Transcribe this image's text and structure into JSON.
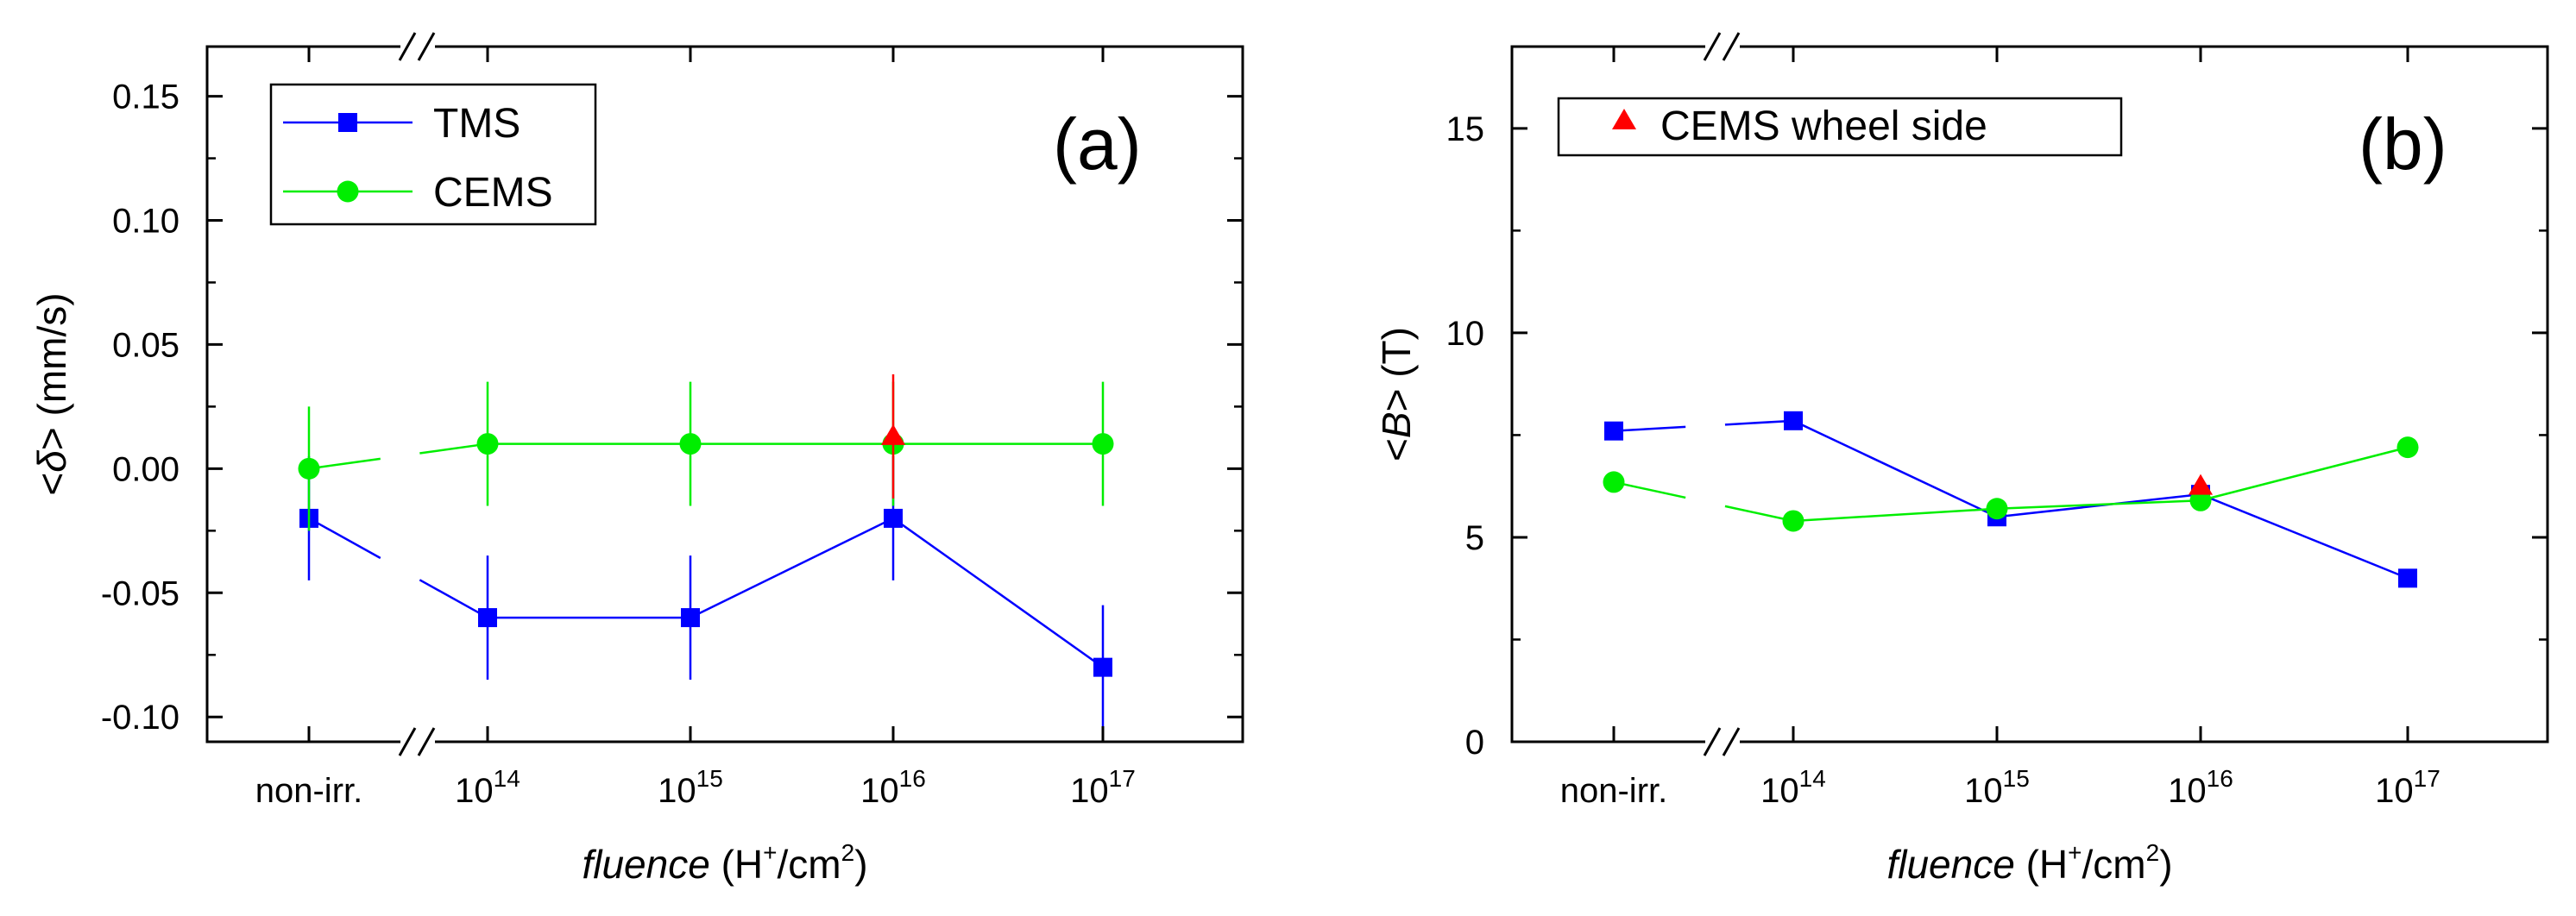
{
  "chart_data": [
    {
      "panel": "(a)",
      "type": "line",
      "title": "",
      "categories": [
        "non-irr.",
        "10^14",
        "10^15",
        "10^16",
        "10^17"
      ],
      "x_tick_labels": [
        {
          "base": "non-irr.",
          "sup": ""
        },
        {
          "base": "10",
          "sup": "14"
        },
        {
          "base": "10",
          "sup": "15"
        },
        {
          "base": "10",
          "sup": "16"
        },
        {
          "base": "10",
          "sup": "17"
        }
      ],
      "xlabel": {
        "italic": "fluence",
        "rest_before_sup": " (H",
        "sup": "+",
        "rest_middle": "/cm",
        "sup2": "2",
        "rest_after": ")"
      },
      "ylabel": {
        "lt": "<",
        "sym": "δ",
        "gt": ">",
        "units": " (mm/s)"
      },
      "ylim": [
        -0.11,
        0.17
      ],
      "yticks": [
        -0.1,
        -0.05,
        0.0,
        0.05,
        0.1,
        0.15
      ],
      "ytick_labels": [
        "-0.10",
        "-0.05",
        "0.00",
        "0.05",
        "0.10",
        "0.15"
      ],
      "legend_position": "top-left",
      "series": [
        {
          "name": "TMS",
          "marker": "square",
          "color": "#0000ff",
          "values": [
            -0.02,
            -0.06,
            -0.06,
            -0.02,
            -0.08
          ],
          "errors": [
            0.025,
            0.025,
            0.025,
            0.025,
            0.025
          ],
          "show_in_legend": true
        },
        {
          "name": "CEMS",
          "marker": "circle",
          "color": "#00ee00",
          "values": [
            0.0,
            0.01,
            0.01,
            0.01,
            0.01
          ],
          "errors": [
            0.025,
            0.025,
            0.025,
            0.025,
            0.025
          ],
          "show_in_legend": true
        },
        {
          "name": "CEMS wheel side",
          "marker": "triangle",
          "color": "#ff0000",
          "values": [
            null,
            null,
            null,
            0.013,
            null
          ],
          "errors": [
            null,
            null,
            null,
            0.025,
            null
          ],
          "show_in_legend": false
        }
      ]
    },
    {
      "panel": "(b)",
      "type": "line",
      "title": "",
      "categories": [
        "non-irr.",
        "10^14",
        "10^15",
        "10^16",
        "10^17"
      ],
      "x_tick_labels": [
        {
          "base": "non-irr.",
          "sup": ""
        },
        {
          "base": "10",
          "sup": "14"
        },
        {
          "base": "10",
          "sup": "15"
        },
        {
          "base": "10",
          "sup": "16"
        },
        {
          "base": "10",
          "sup": "17"
        }
      ],
      "xlabel": {
        "italic": "fluence",
        "rest_before_sup": " (H",
        "sup": "+",
        "rest_middle": "/cm",
        "sup2": "2",
        "rest_after": ")"
      },
      "ylabel": {
        "lt": "<",
        "sym": "B",
        "gt": ">",
        "units": " (T)"
      },
      "ylim": [
        0,
        17
      ],
      "yticks": [
        0,
        5,
        10,
        15
      ],
      "ytick_labels": [
        "0",
        "5",
        "10",
        "15"
      ],
      "legend_position": "top-left",
      "series": [
        {
          "name": "TMS",
          "marker": "square",
          "color": "#0000ff",
          "values": [
            7.6,
            7.85,
            5.5,
            6.05,
            4.0
          ],
          "errors": [
            0.15,
            0.15,
            0.15,
            0.15,
            0.15
          ],
          "show_in_legend": false
        },
        {
          "name": "CEMS",
          "marker": "circle",
          "color": "#00ee00",
          "values": [
            6.35,
            5.4,
            5.7,
            5.9,
            7.2
          ],
          "errors": [
            0.15,
            0.15,
            0.15,
            0.15,
            0.15
          ],
          "show_in_legend": false
        },
        {
          "name": "CEMS wheel side",
          "marker": "triangle",
          "color": "#ff0000",
          "values": [
            null,
            null,
            null,
            6.25,
            null
          ],
          "errors": [
            null,
            null,
            null,
            0.15,
            null
          ],
          "show_in_legend": true
        }
      ]
    }
  ]
}
